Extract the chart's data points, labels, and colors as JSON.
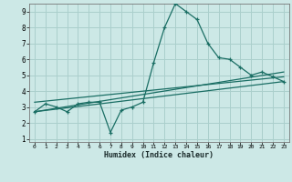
{
  "xlabel": "Humidex (Indice chaleur)",
  "background_color": "#cce8e6",
  "grid_color": "#aacfcc",
  "line_color": "#1a6e64",
  "xlim": [
    -0.5,
    23.5
  ],
  "ylim": [
    0.8,
    9.5
  ],
  "xticks": [
    0,
    1,
    2,
    3,
    4,
    5,
    6,
    7,
    8,
    9,
    10,
    11,
    12,
    13,
    14,
    15,
    16,
    17,
    18,
    19,
    20,
    21,
    22,
    23
  ],
  "yticks": [
    1,
    2,
    3,
    4,
    5,
    6,
    7,
    8,
    9
  ],
  "line1_x": [
    0,
    1,
    2,
    3,
    4,
    5,
    6,
    7,
    8,
    9,
    10,
    11,
    12,
    13,
    14,
    15,
    16,
    17,
    18,
    19,
    20,
    21,
    22,
    23
  ],
  "line1_y": [
    2.7,
    3.2,
    3.0,
    2.7,
    3.2,
    3.3,
    3.3,
    1.4,
    2.8,
    3.0,
    3.3,
    5.8,
    8.0,
    9.5,
    9.0,
    8.5,
    7.0,
    6.1,
    6.0,
    5.5,
    5.0,
    5.2,
    4.9,
    4.6
  ],
  "line2_x": [
    0,
    23
  ],
  "line2_y": [
    2.7,
    5.2
  ],
  "line3_x": [
    0,
    23
  ],
  "line3_y": [
    2.7,
    4.6
  ],
  "line4_x": [
    0,
    23
  ],
  "line4_y": [
    3.3,
    4.9
  ]
}
